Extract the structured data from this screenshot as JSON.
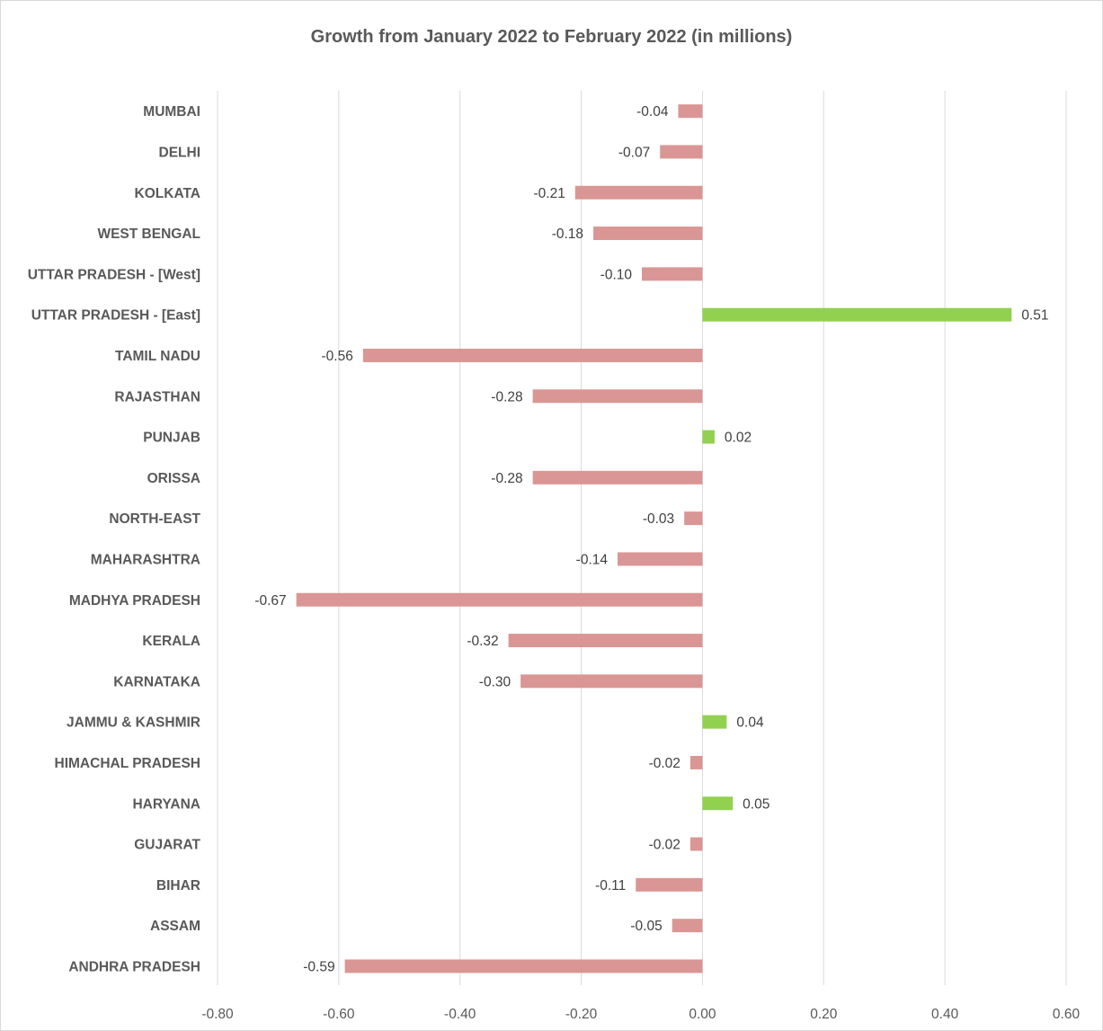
{
  "chart_data": {
    "type": "bar",
    "orientation": "horizontal",
    "title": "Growth from January 2022  to February 2022  (in millions)",
    "xlabel": "",
    "ylabel": "",
    "xlim": [
      -0.8,
      0.6
    ],
    "ticks": [
      "-0.80",
      "-0.60",
      "-0.40",
      "-0.20",
      "0.00",
      "0.20",
      "0.40",
      "0.60"
    ],
    "tick_values": [
      -0.8,
      -0.6,
      -0.4,
      -0.2,
      0.0,
      0.2,
      0.4,
      0.6
    ],
    "grid": true,
    "legend": "none",
    "colors": {
      "positive": "#92d050",
      "negative": "#da9694"
    },
    "categories": [
      "MUMBAI",
      "DELHI",
      "KOLKATA",
      "WEST BENGAL",
      "UTTAR PRADESH - [West]",
      "UTTAR PRADESH - [East]",
      "TAMIL NADU",
      "RAJASTHAN",
      "PUNJAB",
      "ORISSA",
      "NORTH-EAST",
      "MAHARASHTRA",
      "MADHYA PRADESH",
      "KERALA",
      "KARNATAKA",
      "JAMMU & KASHMIR",
      "HIMACHAL PRADESH",
      "HARYANA",
      "GUJARAT",
      "BIHAR",
      "ASSAM",
      "ANDHRA PRADESH"
    ],
    "values": [
      -0.04,
      -0.07,
      -0.21,
      -0.18,
      -0.1,
      0.51,
      -0.56,
      -0.28,
      0.02,
      -0.28,
      -0.03,
      -0.14,
      -0.67,
      -0.32,
      -0.3,
      0.04,
      -0.02,
      0.05,
      -0.02,
      -0.11,
      -0.05,
      -0.59
    ],
    "data_labels": [
      "-0.04",
      "-0.07",
      "-0.21",
      "-0.18",
      "-0.10",
      "0.51",
      "-0.56",
      "-0.28",
      "0.02",
      "-0.28",
      "-0.03",
      "-0.14",
      "-0.67",
      "-0.32",
      "-0.30",
      "0.04",
      "-0.02",
      "0.05",
      "-0.02",
      "-0.11",
      "-0.05",
      "-0.59"
    ]
  }
}
